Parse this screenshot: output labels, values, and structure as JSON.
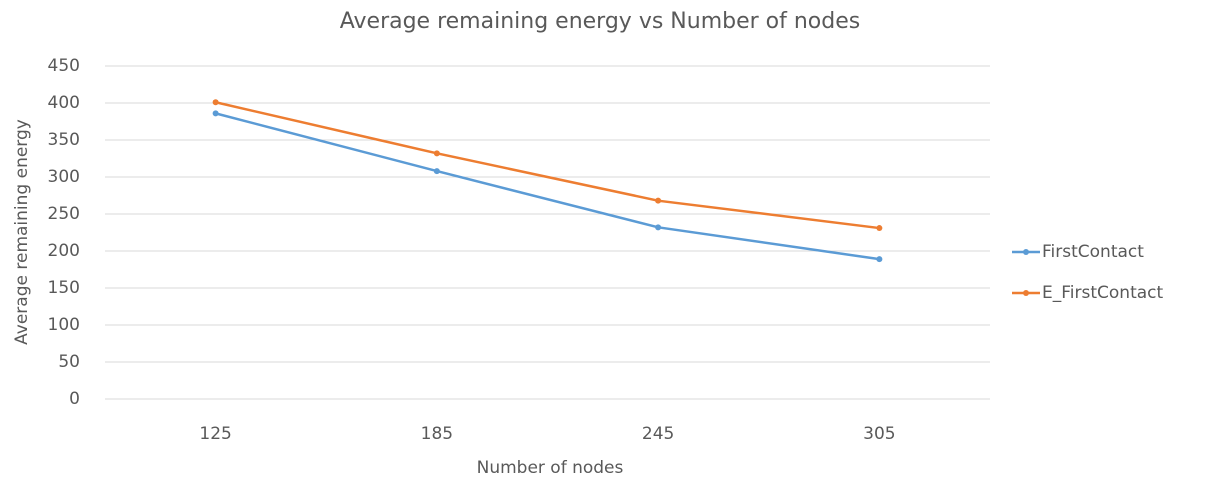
{
  "chart_data": {
    "type": "line",
    "title": "Average remaining energy vs Number of nodes",
    "x_label": "Number of nodes",
    "y_label": "Average remaining energy",
    "categories": [
      "125",
      "185",
      "245",
      "305"
    ],
    "series": [
      {
        "name": "FirstContact",
        "color": "#5b9bd5",
        "values": [
          386,
          308,
          232,
          189
        ]
      },
      {
        "name": "E_FirstContact",
        "color": "#ed7d31",
        "values": [
          401,
          332,
          268,
          231
        ]
      }
    ],
    "ylim": [
      0,
      450
    ],
    "yticks": [
      0,
      50,
      100,
      150,
      200,
      250,
      300,
      350,
      400,
      450
    ],
    "grid": true,
    "legend": "right"
  }
}
